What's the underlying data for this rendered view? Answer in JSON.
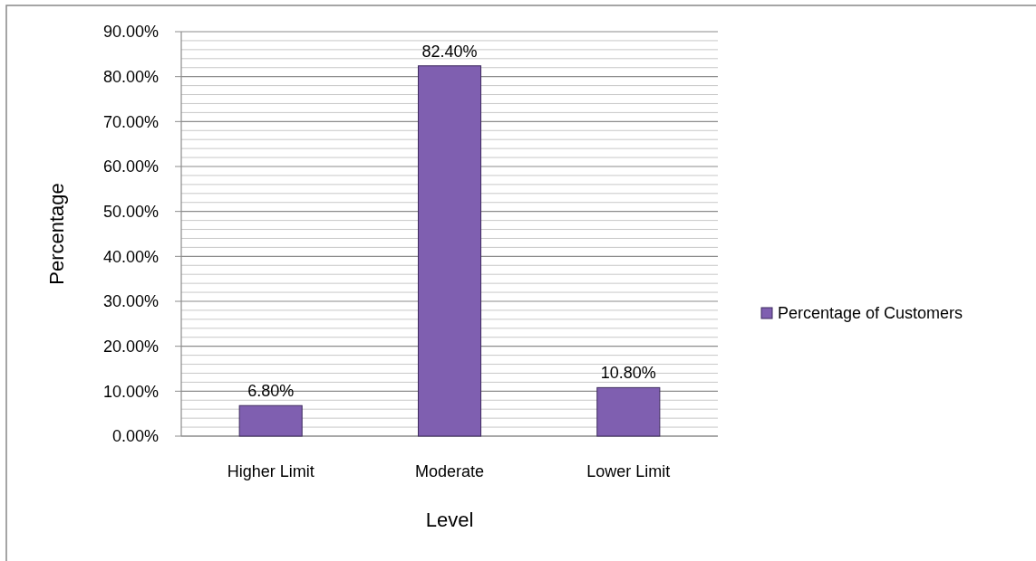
{
  "chart_data": {
    "type": "bar",
    "xlabel": "Level",
    "ylabel": "Percentage",
    "categories": [
      "Higher Limit",
      "Moderate",
      "Lower Limit"
    ],
    "series": [
      {
        "name": "Percentage of Customers",
        "color": "#7f5fb0",
        "values": [
          6.8,
          82.4,
          10.8
        ],
        "value_labels": [
          "6.80%",
          "82.40%",
          "10.80%"
        ]
      }
    ],
    "ylim": [
      0,
      90
    ],
    "yticks": [
      {
        "value": 0,
        "label": "0.00%"
      },
      {
        "value": 10,
        "label": "10.00%"
      },
      {
        "value": 20,
        "label": "20.00%"
      },
      {
        "value": 30,
        "label": "30.00%"
      },
      {
        "value": 40,
        "label": "40.00%"
      },
      {
        "value": 50,
        "label": "50.00%"
      },
      {
        "value": 60,
        "label": "60.00%"
      },
      {
        "value": 70,
        "label": "70.00%"
      },
      {
        "value": 80,
        "label": "80.00%"
      },
      {
        "value": 90,
        "label": "90.00%"
      }
    ],
    "grid": true,
    "legend": "right"
  }
}
